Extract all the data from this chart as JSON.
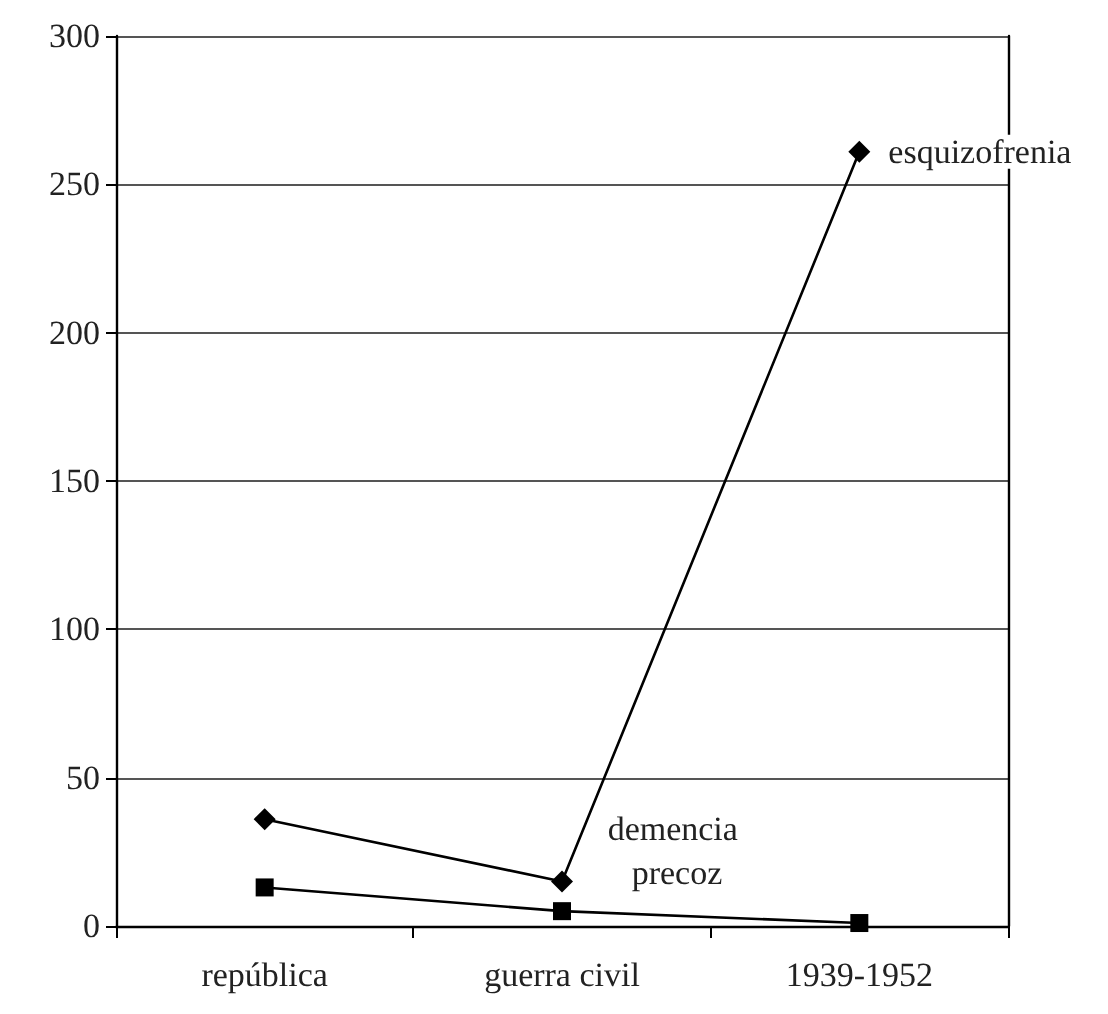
{
  "chart_data": {
    "type": "line",
    "categories": [
      "república",
      "guerra civil",
      "1939-1952"
    ],
    "series": [
      {
        "name": "esquizofrenia",
        "color": "#000000",
        "marker": "diamond",
        "values": [
          36,
          15,
          261
        ]
      },
      {
        "name": "demencia precoz",
        "color": "#000000",
        "marker": "square",
        "values": [
          13,
          5,
          1
        ]
      }
    ],
    "ylim": [
      0,
      300
    ],
    "yticks": [
      0,
      50,
      100,
      150,
      200,
      250,
      300
    ],
    "grid": "y",
    "legend": false
  }
}
